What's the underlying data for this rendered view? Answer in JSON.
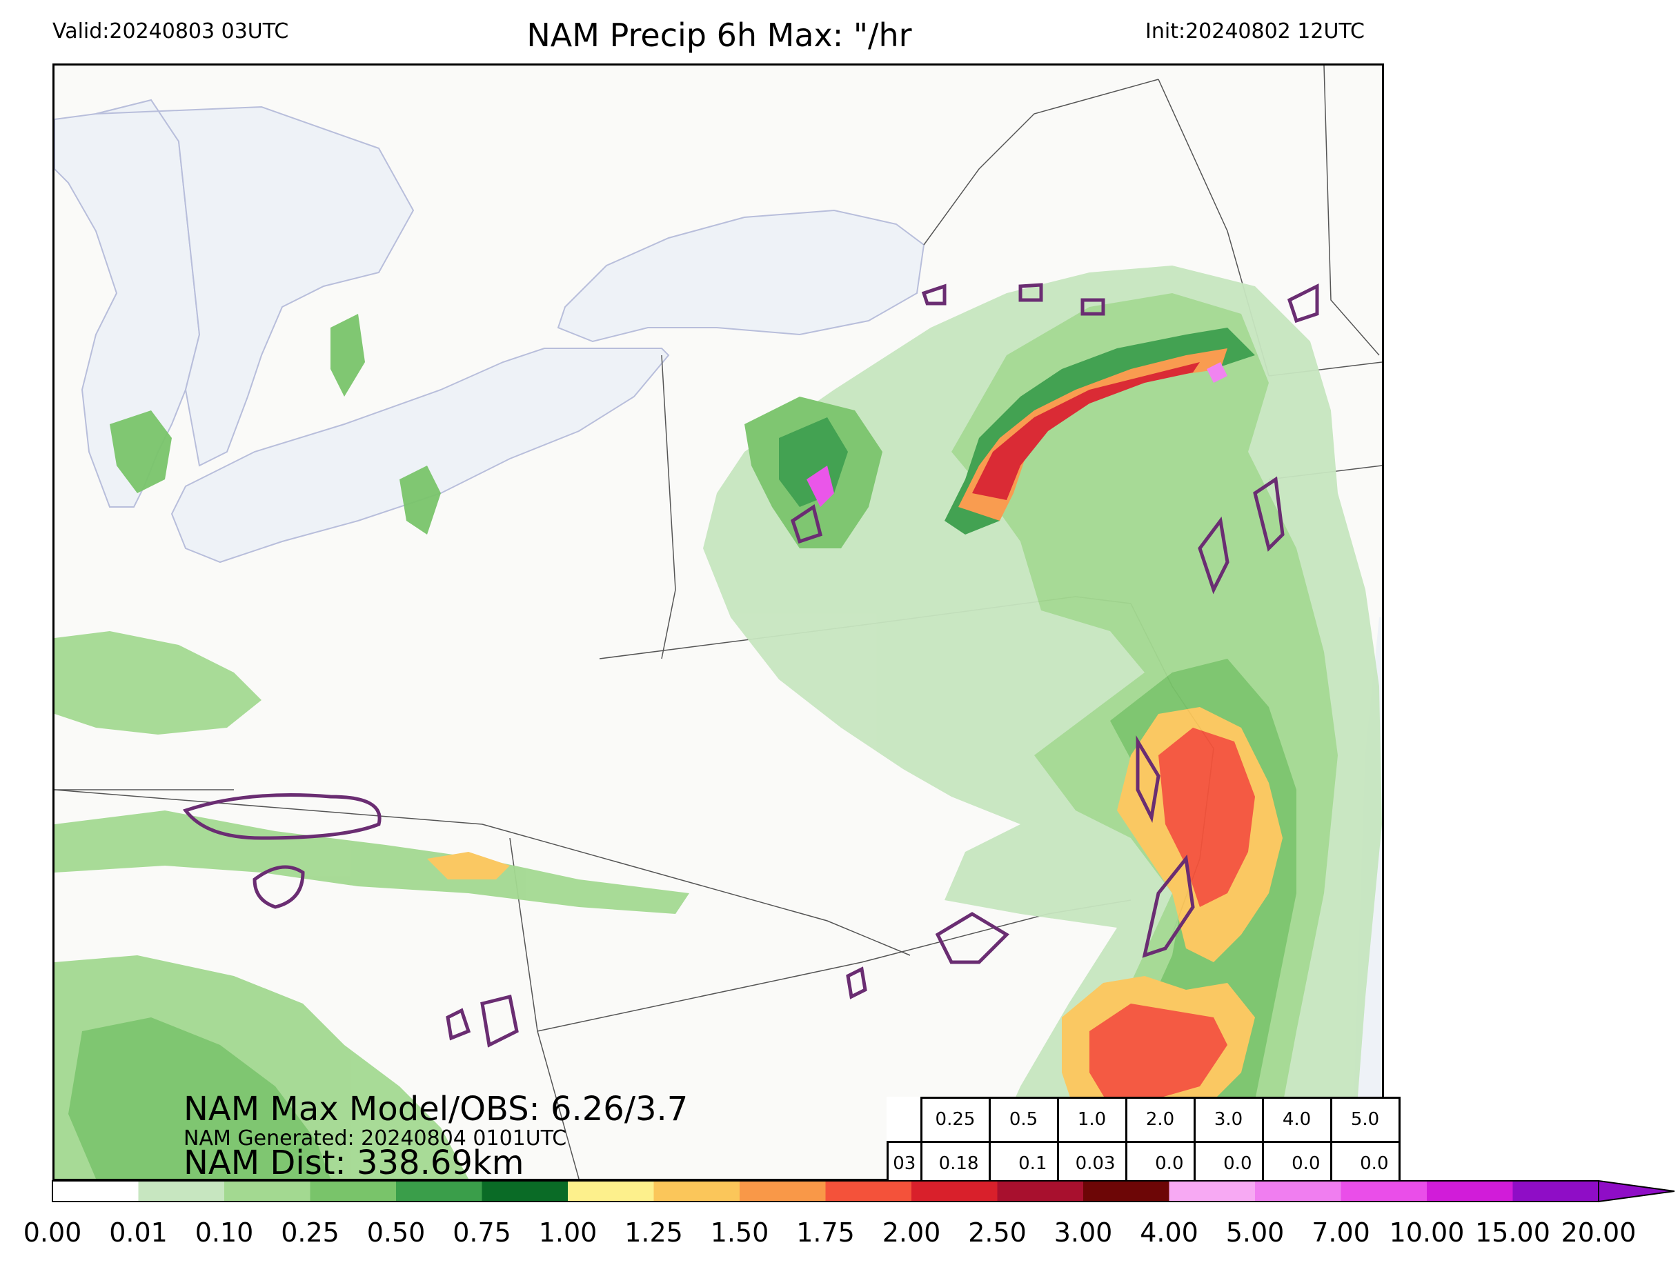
{
  "header": {
    "valid": "Valid:20240803 03UTC",
    "title": "NAM Precip 6h Max: \"/hr",
    "init": "Init:20240802 12UTC"
  },
  "stats": {
    "max_model_obs": "NAM Max Model/OBS: 6.26/3.7",
    "generated": "NAM Generated: 20240804 0101UTC",
    "dist": "NAM Dist: 338.69km"
  },
  "threshold_table": {
    "thresholds": [
      "0.25",
      "0.5",
      "1.0",
      "2.0",
      "3.0",
      "4.0",
      "5.0"
    ],
    "row_label": "03",
    "values": [
      "0.18",
      "0.1",
      "0.03",
      "0.0",
      "0.0",
      "0.0",
      "0.0"
    ]
  },
  "colorbar": {
    "labels": [
      "0.00",
      "0.01",
      "0.10",
      "0.25",
      "0.50",
      "0.75",
      "1.00",
      "1.25",
      "1.50",
      "1.75",
      "2.00",
      "2.50",
      "3.00",
      "4.00",
      "5.00",
      "7.00",
      "10.00",
      "15.00",
      "20.00"
    ],
    "colors": [
      "#ffffff",
      "#c7e6c0",
      "#a3d991",
      "#79c46a",
      "#3a9e4a",
      "#0a6b26",
      "#fdf08c",
      "#fbc65a",
      "#f99848",
      "#f4523a",
      "#d9202b",
      "#a8102e",
      "#6d0606",
      "#f7a9f3",
      "#f07ef0",
      "#ea4ee9",
      "#d11cd9",
      "#8f0dc6"
    ],
    "extend_color": "#8f0dc6"
  },
  "map_colors": {
    "background": "#fafaf8",
    "water": "#eef2f7",
    "obs_contour": "#6a2d72",
    "border": "#555555"
  }
}
